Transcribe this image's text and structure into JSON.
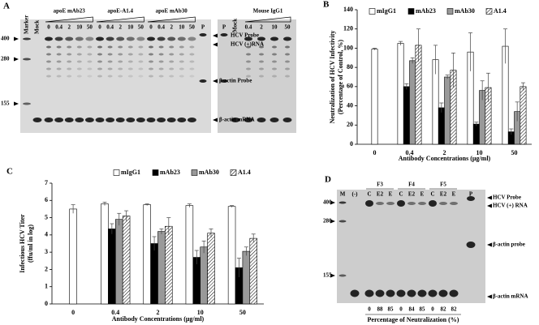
{
  "panel_a": {
    "letter": "A",
    "lanes_left": [
      "Marker",
      "Mock"
    ],
    "groups": [
      {
        "label": "apoE mAb23",
        "lanes": [
          "0",
          "0.4",
          "2",
          "10",
          "50"
        ]
      },
      {
        "label": "apoE-A1.4",
        "lanes": [
          "0",
          "0.4",
          "2",
          "10",
          "50"
        ]
      },
      {
        "label": "apoE mAb30",
        "lanes": [
          "0",
          "0.4",
          "2",
          "10",
          "50"
        ]
      }
    ],
    "probe_lane": "P",
    "control": {
      "probe_lane": "P",
      "mock": "Mock",
      "label": "Mouse IgG1",
      "lanes": [
        "0.4",
        "2",
        "10",
        "50"
      ]
    },
    "annotations": [
      "HCV Probe",
      "HCV (+)RNA",
      "β-actin Probe",
      "β-actin mRNA"
    ],
    "markers": [
      "400",
      "280",
      "155"
    ]
  },
  "chart_data": [
    {
      "type": "bar",
      "panel": "B",
      "y_label": [
        "Neutralization of HCV Infectivity",
        "(Percentage of Control, %)"
      ],
      "x_label": "Antibody Concentrations (μg/ml)",
      "categories": [
        "0",
        "0.4",
        "2",
        "10",
        "50"
      ],
      "series": [
        {
          "name": "mIgG1",
          "color": "#ffffff",
          "values": [
            99,
            105,
            88,
            96,
            102
          ],
          "errors": [
            1,
            2,
            15,
            20,
            18
          ]
        },
        {
          "name": "mAb23",
          "color": "#000000",
          "values": [
            null,
            60,
            38,
            21,
            13
          ],
          "errors": [
            null,
            3,
            5,
            2,
            3
          ]
        },
        {
          "name": "mAb30",
          "color": "#999999",
          "values": [
            null,
            87,
            70,
            56,
            34
          ],
          "errors": [
            null,
            3,
            2,
            10,
            10
          ]
        },
        {
          "name": "A1.4",
          "color": "#ffffff",
          "hatch": true,
          "values": [
            null,
            103,
            77,
            59,
            60
          ],
          "errors": [
            null,
            17,
            18,
            15,
            4
          ]
        }
      ],
      "ylim": [
        0,
        140
      ],
      "yticks": [
        0,
        20,
        40,
        60,
        80,
        100,
        120,
        140
      ]
    },
    {
      "type": "bar",
      "panel": "C",
      "y_label": [
        "Infectious HCV Titer",
        "(ffu/ml in log)"
      ],
      "x_label": "Antibody Concentrations (μg/ml)",
      "categories": [
        "0",
        "0.4",
        "2",
        "10",
        "50"
      ],
      "series": [
        {
          "name": "mIgG1",
          "color": "#ffffff",
          "values": [
            5.5,
            5.8,
            5.75,
            5.7,
            5.65
          ],
          "errors": [
            0.25,
            0.1,
            0.05,
            0.1,
            0.05
          ]
        },
        {
          "name": "mAb23",
          "color": "#000000",
          "values": [
            null,
            4.35,
            3.5,
            2.7,
            2.1
          ],
          "errors": [
            null,
            0.3,
            0.4,
            0.4,
            0.55
          ]
        },
        {
          "name": "mAb30",
          "color": "#999999",
          "values": [
            null,
            4.9,
            4.2,
            3.3,
            3.05
          ],
          "errors": [
            null,
            0.35,
            0.15,
            0.35,
            0.25
          ]
        },
        {
          "name": "A1.4",
          "color": "#ffffff",
          "hatch": true,
          "values": [
            null,
            5.1,
            4.5,
            4.1,
            3.8
          ],
          "errors": [
            null,
            0.3,
            0.5,
            0.25,
            0.25
          ]
        }
      ],
      "ylim": [
        0,
        7
      ],
      "yticks": [
        0,
        1,
        2,
        3,
        4,
        5,
        6,
        7
      ]
    }
  ],
  "panel_d": {
    "letter": "D",
    "lanes_left": [
      "M",
      "(-)"
    ],
    "groups": [
      {
        "label": "F3",
        "lanes": [
          "C",
          "E2",
          "E"
        ]
      },
      {
        "label": "F4",
        "lanes": [
          "C",
          "E2",
          "E"
        ]
      },
      {
        "label": "F5",
        "lanes": [
          "C",
          "E2",
          "E"
        ]
      }
    ],
    "probe_lane": "P",
    "annotations": [
      "HCV Probe",
      "HCV (+) RNA",
      "β-actin probe",
      "β-actin mRNA"
    ],
    "markers": [
      "400",
      "280",
      "155"
    ],
    "neutralization": [
      0,
      88,
      85,
      0,
      84,
      85,
      0,
      82,
      82
    ],
    "neutralization_label": "Percentage of Neutralization (%)"
  }
}
